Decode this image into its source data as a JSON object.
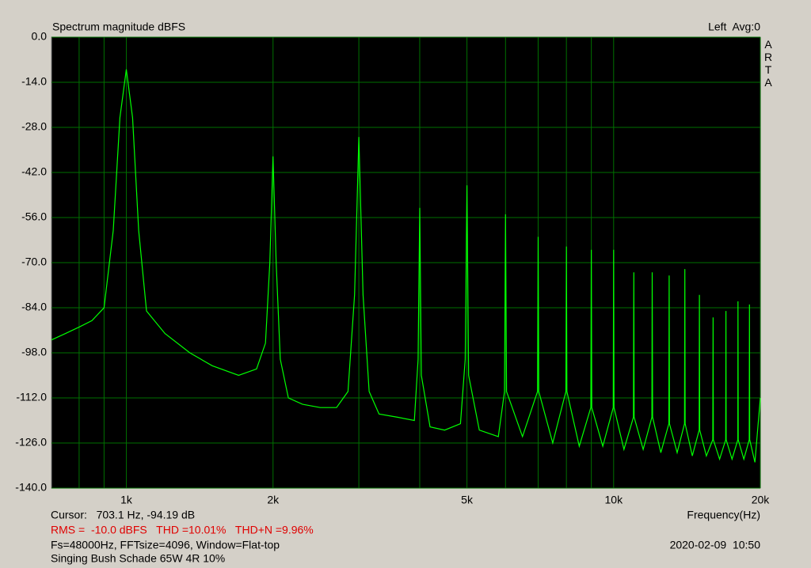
{
  "chart_data": {
    "type": "line",
    "title": "Spectrum magnitude dBFS",
    "channel_label": "Left  Avg:0",
    "brand": "ARTA",
    "x_label": "Frequency(Hz)",
    "cursor": "Cursor:   703.1 Hz, -94.19 dB",
    "measurements": "RMS =  -10.0 dBFS   THD =10.01%   THD+N =9.96%",
    "settings": "Fs=48000Hz, FFTsize=4096, Window=Flat-top",
    "timestamp": "2020-02-09  10:50",
    "description": "Singing Bush Schade 65W 4R 10%",
    "xscale": "log",
    "grid": true,
    "xlim": [
      702,
      20000
    ],
    "ylim": [
      -140,
      0
    ],
    "xticks": [
      {
        "value": 1000,
        "label": "1k"
      },
      {
        "value": 2000,
        "label": "2k"
      },
      {
        "value": 5000,
        "label": "5k"
      },
      {
        "value": 10000,
        "label": "10k"
      },
      {
        "value": 20000,
        "label": "20k"
      }
    ],
    "xminor": [
      800,
      900,
      3000,
      4000,
      6000,
      7000,
      8000,
      9000
    ],
    "yticks": [
      {
        "value": 0,
        "label": "0.0"
      },
      {
        "value": -14,
        "label": "-14.0"
      },
      {
        "value": -28,
        "label": "-28.0"
      },
      {
        "value": -42,
        "label": "-42.0"
      },
      {
        "value": -56,
        "label": "-56.0"
      },
      {
        "value": -70,
        "label": "-70.0"
      },
      {
        "value": -84,
        "label": "-84.0"
      },
      {
        "value": -98,
        "label": "-98.0"
      },
      {
        "value": -112,
        "label": "-112.0"
      },
      {
        "value": -126,
        "label": "-126.0"
      },
      {
        "value": -140,
        "label": "-140.0"
      }
    ],
    "x": [
      702,
      750,
      800,
      850,
      900,
      940,
      970,
      1000,
      1030,
      1060,
      1100,
      1200,
      1350,
      1500,
      1700,
      1850,
      1930,
      1970,
      2000,
      2030,
      2070,
      2150,
      2300,
      2500,
      2700,
      2850,
      2940,
      3000,
      3060,
      3150,
      3300,
      3600,
      3900,
      3970,
      4000,
      4030,
      4200,
      4500,
      4850,
      4960,
      5000,
      5040,
      5300,
      5800,
      5970,
      6000,
      6030,
      6500,
      6980,
      7000,
      7020,
      7500,
      7980,
      8000,
      8020,
      8500,
      8980,
      9000,
      9020,
      9500,
      9980,
      10000,
      10020,
      10500,
      10980,
      11000,
      11020,
      11500,
      11980,
      12000,
      12020,
      12500,
      12980,
      13000,
      13020,
      13500,
      13980,
      14000,
      14020,
      14500,
      14980,
      15000,
      15020,
      15500,
      15980,
      16000,
      16020,
      16500,
      16980,
      17000,
      17020,
      17500,
      17980,
      18000,
      18020,
      18500,
      18980,
      19000,
      19020,
      19500,
      20000
    ],
    "series": [
      {
        "color": "#00ff00",
        "values": [
          -94,
          -92,
          -90,
          -88,
          -84,
          -60,
          -25,
          -10,
          -25,
          -60,
          -85,
          -92,
          -98,
          -102,
          -105,
          -103,
          -95,
          -70,
          -37,
          -70,
          -100,
          -112,
          -114,
          -115,
          -115,
          -110,
          -80,
          -31,
          -80,
          -110,
          -117,
          -118,
          -119,
          -100,
          -53,
          -105,
          -121,
          -122,
          -120,
          -100,
          -46,
          -105,
          -122,
          -124,
          -110,
          -55,
          -110,
          -124,
          -110,
          -62,
          -110,
          -126,
          -110,
          -65,
          -110,
          -127,
          -115,
          -66,
          -115,
          -127,
          -115,
          -66,
          -115,
          -128,
          -118,
          -73,
          -118,
          -128,
          -118,
          -73,
          -118,
          -129,
          -120,
          -74,
          -120,
          -129,
          -120,
          -72,
          -120,
          -130,
          -122,
          -80,
          -122,
          -130,
          -125,
          -87,
          -125,
          -131,
          -125,
          -85,
          -125,
          -131,
          -125,
          -82,
          -125,
          -131,
          -125,
          -83,
          -125,
          -132,
          -112
        ]
      }
    ]
  }
}
